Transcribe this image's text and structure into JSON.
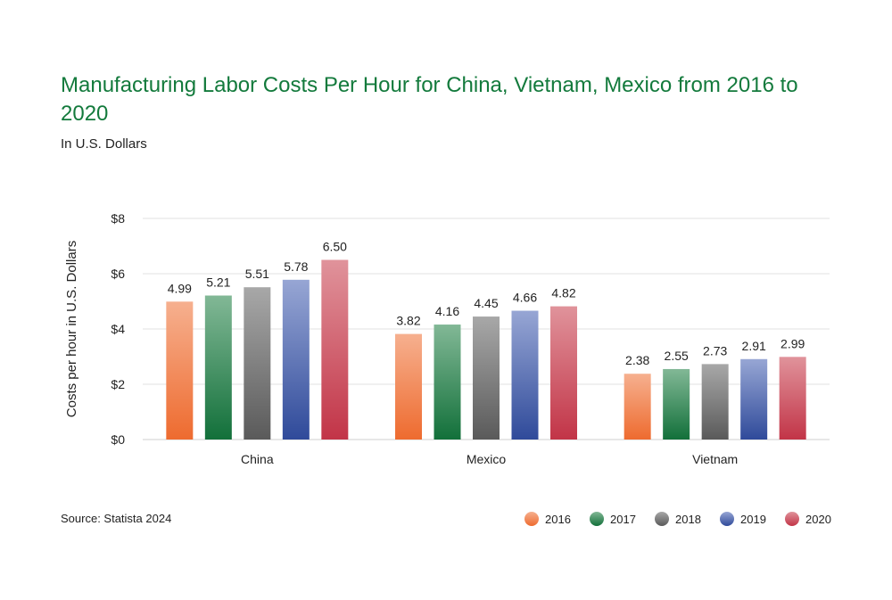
{
  "chart_data": {
    "type": "bar",
    "title": "Manufacturing Labor Costs Per Hour for China, Vietnam, Mexico from 2016 to 2020",
    "subtitle": "In U.S. Dollars",
    "xlabel": "",
    "ylabel": "Costs per hour in U.S. Dollars",
    "ylim": [
      0,
      8
    ],
    "yticks": [
      0,
      2,
      4,
      6,
      8
    ],
    "ytick_labels": [
      "$0",
      "$2",
      "$4",
      "$6",
      "$8"
    ],
    "grid": true,
    "legend_placement": "bottom-right",
    "categories": [
      "China",
      "Mexico",
      "Vietnam"
    ],
    "series": [
      {
        "name": "2016",
        "values": [
          4.99,
          3.82,
          2.38
        ],
        "color": "#ee6b2f",
        "color_light": "#f6b08f"
      },
      {
        "name": "2017",
        "values": [
          5.21,
          4.16,
          2.55
        ],
        "color": "#12703a",
        "color_light": "#82b896"
      },
      {
        "name": "2018",
        "values": [
          5.51,
          4.45,
          2.73
        ],
        "color": "#5a5a5a",
        "color_light": "#a8a8a8"
      },
      {
        "name": "2019",
        "values": [
          5.78,
          4.66,
          2.91
        ],
        "color": "#2f4a9a",
        "color_light": "#97a6d4"
      },
      {
        "name": "2020",
        "values": [
          6.5,
          4.82,
          2.99
        ],
        "color": "#c23447",
        "color_light": "#e0939b"
      }
    ],
    "data_labels": [
      [
        "4.99",
        "3.82",
        "2.38"
      ],
      [
        "5.21",
        "4.16",
        "2.55"
      ],
      [
        "5.51",
        "4.45",
        "2.73"
      ],
      [
        "5.78",
        "4.66",
        "2.91"
      ],
      [
        "6.50",
        "4.82",
        "2.99"
      ]
    ]
  },
  "source": "Source: Statista 2024"
}
